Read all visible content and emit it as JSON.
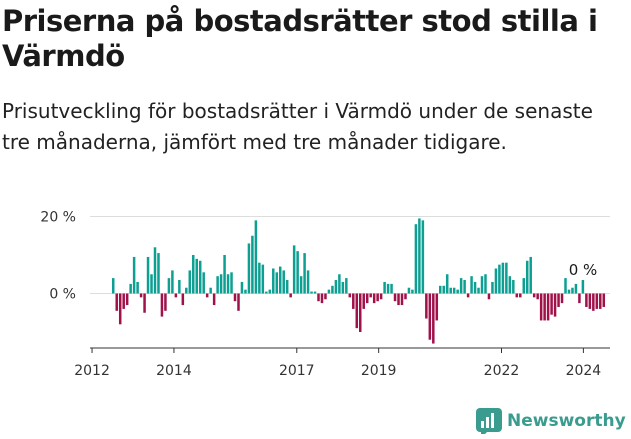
{
  "header": {
    "title": "Priserna på bostadsrätter stod stilla i Värmdö",
    "subtitle": "Prisutveckling för bostadsrätter i Värmdö under de senaste tre månaderna, jämfört med tre månader tidigare."
  },
  "brand": {
    "name": "Newsworthy"
  },
  "colors": {
    "positive": "#0e9f93",
    "negative": "#a0114a",
    "grid": "#dddddd",
    "axis": "#333333"
  },
  "chart_data": {
    "type": "bar",
    "y_unit": "%",
    "ylim": [
      -13,
      21
    ],
    "yticks": [
      {
        "value": 20,
        "label": "20 %"
      },
      {
        "value": 0,
        "label": "0 %"
      }
    ],
    "xticks": [
      {
        "value": 2012,
        "label": "2012"
      },
      {
        "value": 2014,
        "label": "2014"
      },
      {
        "value": 2017,
        "label": "2017"
      },
      {
        "value": 2019,
        "label": "2019"
      },
      {
        "value": 2022,
        "label": "2022"
      },
      {
        "value": 2024,
        "label": "2024"
      }
    ],
    "x_range": [
      2011.95,
      2024.65
    ],
    "annotation": {
      "label": "0 %",
      "value": 0
    },
    "start_year": 2012,
    "series": [
      {
        "values": [
          4,
          -4.5,
          -8,
          -4,
          -3,
          2.5,
          9.5,
          3,
          -1,
          -5,
          9.5,
          5,
          12,
          10.5,
          -6,
          -4.5,
          4,
          6,
          -1,
          3.5,
          -3,
          1.5,
          6,
          10,
          9,
          8.5,
          5.5,
          -1,
          1.5,
          -3,
          4.5,
          5,
          10,
          5,
          5.5,
          -2,
          -4.5,
          3,
          1,
          13,
          15,
          19,
          8,
          7.5,
          0.5,
          1,
          6.5,
          5.5,
          7,
          6,
          3.5,
          -1,
          12.5,
          11,
          4.5,
          10.5,
          6,
          0.5,
          0.5,
          -2,
          -2.5,
          -1.5,
          1,
          2,
          3.5,
          5,
          3,
          4,
          -1,
          -4,
          -9,
          -10,
          -4,
          -2.5,
          -1,
          -2.5,
          -2,
          -1.5,
          3,
          2.5,
          2.5,
          -2,
          -3,
          -3,
          -1.5,
          1.5,
          1,
          18,
          19.5,
          19,
          -6.5,
          -12,
          -13,
          -7,
          2,
          2,
          5,
          1.5,
          1.5,
          1,
          4,
          3.5,
          -1,
          4.5,
          3,
          1.5,
          4.5,
          5,
          -1.5,
          3,
          6.5,
          7.5,
          8,
          8,
          4.5,
          3.5,
          -1,
          -1,
          4,
          8.5,
          9.5,
          -1,
          -1.5,
          -7,
          -7,
          -7,
          -5.5,
          -6,
          -3.5,
          -2.5,
          4,
          1,
          1.5,
          2.5,
          -2.5,
          3.5,
          -3.5,
          -4,
          -4.5,
          -4,
          -4,
          -3.5
        ]
      }
    ]
  }
}
